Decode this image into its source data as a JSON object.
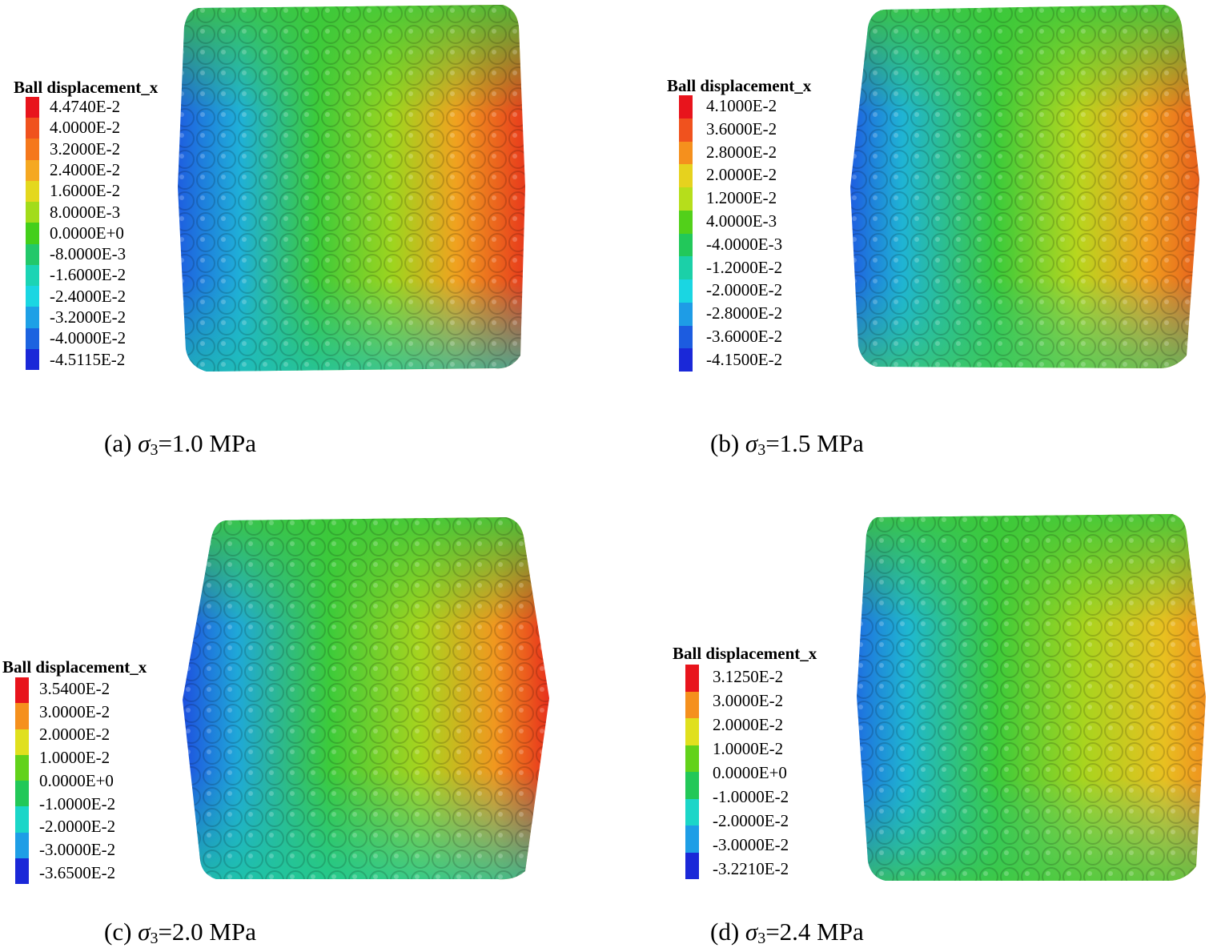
{
  "panels": [
    {
      "legend": {
        "title": "Ball displacement_x",
        "labels": [
          "4.4740E-2",
          "4.0000E-2",
          "3.2000E-2",
          "2.4000E-2",
          "1.6000E-2",
          "8.0000E-3",
          "0.0000E+0",
          "-8.0000E-3",
          "-1.6000E-2",
          "-2.4000E-2",
          "-3.2000E-2",
          "-4.0000E-2",
          "-4.5115E-2"
        ],
        "colors": [
          "#e8141c",
          "#f0521e",
          "#f5781c",
          "#f5a821",
          "#e4d81e",
          "#a2dc1a",
          "#43cf1a",
          "#22c86a",
          "#1bd4b4",
          "#1ad6e2",
          "#1ea0e6",
          "#1c63e0",
          "#1a28d8"
        ]
      },
      "caption": {
        "prefix": "(a) ",
        "symbol": "σ",
        "sub": "3",
        "value": "=1.0 MPa"
      }
    },
    {
      "legend": {
        "title": "Ball displacement_x",
        "labels": [
          "4.1000E-2",
          "3.6000E-2",
          "2.8000E-2",
          "2.0000E-2",
          "1.2000E-2",
          "4.0000E-3",
          "-4.0000E-3",
          "-1.2000E-2",
          "-2.0000E-2",
          "-2.8000E-2",
          "-3.6000E-2",
          "-4.1500E-2"
        ],
        "colors": [
          "#e8141c",
          "#f0521e",
          "#f5901d",
          "#e6d21e",
          "#b6de1b",
          "#52d01a",
          "#22c85a",
          "#1bd0a8",
          "#1ad6e2",
          "#1e9ce6",
          "#1c5ce0",
          "#1a28d8"
        ]
      },
      "caption": {
        "prefix": "(b) ",
        "symbol": "σ",
        "sub": "3",
        "value": "=1.5 MPa"
      }
    },
    {
      "legend": {
        "title": "Ball displacement_x",
        "labels": [
          "3.5400E-2",
          "3.0000E-2",
          "2.0000E-2",
          "1.0000E-2",
          "0.0000E+0",
          "-1.0000E-2",
          "-2.0000E-2",
          "-3.0000E-2",
          "-3.6500E-2"
        ],
        "colors": [
          "#e8141c",
          "#f5901d",
          "#e0e01e",
          "#62d21a",
          "#22c858",
          "#1bd6c8",
          "#1e9ee6",
          "#1a28d8"
        ]
      },
      "caption": {
        "prefix": "(c) ",
        "symbol": "σ",
        "sub": "3",
        "value": "=2.0 MPa"
      }
    },
    {
      "legend": {
        "title": "Ball displacement_x",
        "labels": [
          "3.1250E-2",
          "3.0000E-2",
          "2.0000E-2",
          "1.0000E-2",
          "0.0000E+0",
          "-1.0000E-2",
          "-2.0000E-2",
          "-3.0000E-2",
          "-3.2210E-2"
        ],
        "colors": [
          "#e8141c",
          "#f5901d",
          "#e0e01e",
          "#62d21a",
          "#22c858",
          "#1bd6c8",
          "#1e9ee6",
          "#1a28d8"
        ]
      },
      "caption": {
        "prefix": "(d) ",
        "symbol": "σ",
        "sub": "3",
        "value": "=2.4 MPa"
      }
    }
  ]
}
